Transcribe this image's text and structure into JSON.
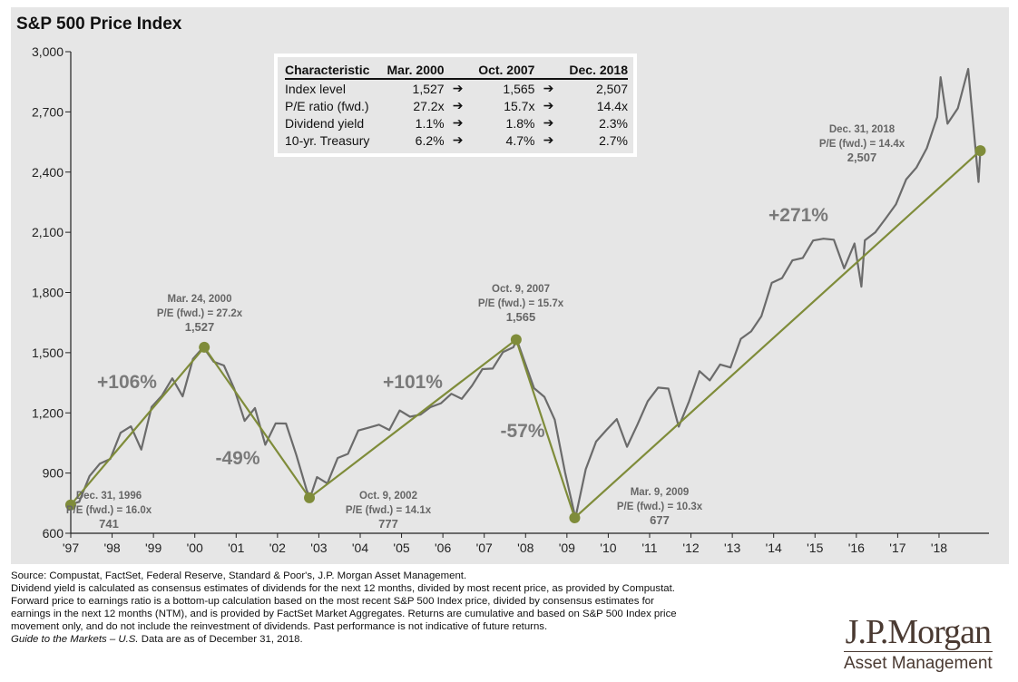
{
  "chart_data": {
    "type": "line",
    "title": "S&P 500 Price Index",
    "ylim": [
      600,
      3000
    ],
    "yticks": [
      600,
      900,
      1200,
      1500,
      1800,
      2100,
      2400,
      2700,
      3000
    ],
    "ytick_labels": [
      "600",
      "900",
      "1,200",
      "1,500",
      "1,800",
      "2,100",
      "2,400",
      "2,700",
      "3,000"
    ],
    "xticks": [
      1997,
      1998,
      1999,
      2000,
      2001,
      2002,
      2003,
      2004,
      2005,
      2006,
      2007,
      2008,
      2009,
      2010,
      2011,
      2012,
      2013,
      2014,
      2015,
      2016,
      2017,
      2018
    ],
    "xtick_labels": [
      "'97",
      "'98",
      "'99",
      "'00",
      "'01",
      "'02",
      "'03",
      "'04",
      "'05",
      "'06",
      "'07",
      "'08",
      "'09",
      "'10",
      "'11",
      "'12",
      "'13",
      "'14",
      "'15",
      "'16",
      "'17",
      "'18"
    ],
    "grid": false,
    "colors": {
      "price": "#6b6b6b",
      "trend": "#7f8c3a",
      "background": "#e6e6e6"
    },
    "price_series": [
      [
        "1996-12",
        741
      ],
      [
        "1997-03",
        757
      ],
      [
        "1997-06",
        885
      ],
      [
        "1997-09",
        947
      ],
      [
        "1997-12",
        970
      ],
      [
        "1998-03",
        1101
      ],
      [
        "1998-06",
        1133
      ],
      [
        "1998-09",
        1017
      ],
      [
        "1998-12",
        1229
      ],
      [
        "1999-03",
        1286
      ],
      [
        "1999-06",
        1372
      ],
      [
        "1999-09",
        1282
      ],
      [
        "1999-12",
        1469
      ],
      [
        "2000-03",
        1527
      ],
      [
        "2000-06",
        1455
      ],
      [
        "2000-09",
        1436
      ],
      [
        "2000-12",
        1320
      ],
      [
        "2001-03",
        1160
      ],
      [
        "2001-06",
        1224
      ],
      [
        "2001-09",
        1041
      ],
      [
        "2001-12",
        1148
      ],
      [
        "2002-03",
        1147
      ],
      [
        "2002-06",
        990
      ],
      [
        "2002-09",
        815
      ],
      [
        "2002-10",
        777
      ],
      [
        "2002-12",
        880
      ],
      [
        "2003-03",
        848
      ],
      [
        "2003-06",
        975
      ],
      [
        "2003-09",
        996
      ],
      [
        "2003-12",
        1112
      ],
      [
        "2004-03",
        1126
      ],
      [
        "2004-06",
        1141
      ],
      [
        "2004-09",
        1115
      ],
      [
        "2004-12",
        1212
      ],
      [
        "2005-03",
        1181
      ],
      [
        "2005-06",
        1191
      ],
      [
        "2005-09",
        1229
      ],
      [
        "2005-12",
        1248
      ],
      [
        "2006-03",
        1295
      ],
      [
        "2006-06",
        1270
      ],
      [
        "2006-09",
        1336
      ],
      [
        "2006-12",
        1418
      ],
      [
        "2007-03",
        1421
      ],
      [
        "2007-06",
        1503
      ],
      [
        "2007-09",
        1527
      ],
      [
        "2007-10",
        1565
      ],
      [
        "2007-12",
        1468
      ],
      [
        "2008-03",
        1323
      ],
      [
        "2008-06",
        1280
      ],
      [
        "2008-09",
        1166
      ],
      [
        "2008-12",
        903
      ],
      [
        "2009-03",
        677
      ],
      [
        "2009-06",
        919
      ],
      [
        "2009-09",
        1057
      ],
      [
        "2009-12",
        1115
      ],
      [
        "2010-03",
        1169
      ],
      [
        "2010-06",
        1031
      ],
      [
        "2010-09",
        1141
      ],
      [
        "2010-12",
        1258
      ],
      [
        "2011-03",
        1326
      ],
      [
        "2011-06",
        1321
      ],
      [
        "2011-09",
        1131
      ],
      [
        "2011-12",
        1258
      ],
      [
        "2012-03",
        1408
      ],
      [
        "2012-06",
        1362
      ],
      [
        "2012-09",
        1441
      ],
      [
        "2012-12",
        1426
      ],
      [
        "2013-03",
        1569
      ],
      [
        "2013-06",
        1606
      ],
      [
        "2013-09",
        1682
      ],
      [
        "2013-12",
        1848
      ],
      [
        "2014-03",
        1872
      ],
      [
        "2014-06",
        1960
      ],
      [
        "2014-09",
        1972
      ],
      [
        "2014-12",
        2059
      ],
      [
        "2015-03",
        2068
      ],
      [
        "2015-06",
        2063
      ],
      [
        "2015-09",
        1920
      ],
      [
        "2015-12",
        2044
      ],
      [
        "2016-02",
        1829
      ],
      [
        "2016-03",
        2060
      ],
      [
        "2016-06",
        2099
      ],
      [
        "2016-09",
        2168
      ],
      [
        "2016-12",
        2239
      ],
      [
        "2017-03",
        2363
      ],
      [
        "2017-06",
        2423
      ],
      [
        "2017-09",
        2519
      ],
      [
        "2017-12",
        2674
      ],
      [
        "2018-01",
        2873
      ],
      [
        "2018-03",
        2641
      ],
      [
        "2018-06",
        2718
      ],
      [
        "2018-09",
        2914
      ],
      [
        "2018-12",
        2351
      ],
      [
        "2018-12-31",
        2507
      ]
    ],
    "trend_points": [
      {
        "date": "1996-12-31",
        "value": 741,
        "label": [
          "Dec. 31, 1996",
          "P/E (fwd.) = 16.0x",
          "741"
        ]
      },
      {
        "date": "2000-03-24",
        "value": 1527,
        "label": [
          "Mar. 24, 2000",
          "P/E (fwd.) = 27.2x",
          "1,527"
        ]
      },
      {
        "date": "2002-10-09",
        "value": 777,
        "label": [
          "Oct. 9, 2002",
          "P/E (fwd.) = 14.1x",
          "777"
        ]
      },
      {
        "date": "2007-10-09",
        "value": 1565,
        "label": [
          "Oct. 9, 2007",
          "P/E (fwd.) = 15.7x",
          "1,565"
        ]
      },
      {
        "date": "2009-03-09",
        "value": 677,
        "label": [
          "Mar. 9, 2009",
          "P/E (fwd.) = 10.3x",
          "677"
        ]
      },
      {
        "date": "2018-12-31",
        "value": 2507,
        "label": [
          "Dec. 31, 2018",
          "P/E (fwd.) = 14.4x",
          "2,507"
        ]
      }
    ],
    "returns": [
      "+106%",
      "-49%",
      "+101%",
      "-57%",
      "+271%"
    ]
  },
  "table": {
    "headers": [
      "Characteristic",
      "Mar. 2000",
      "Oct. 2007",
      "Dec. 2018"
    ],
    "rows": [
      [
        "Index level",
        "1,527",
        "1,565",
        "2,507"
      ],
      [
        "P/E ratio (fwd.)",
        "27.2x",
        "15.7x",
        "14.4x"
      ],
      [
        "Dividend yield",
        "1.1%",
        "1.8%",
        "2.3%"
      ],
      [
        "10-yr. Treasury",
        "6.2%",
        "4.7%",
        "2.7%"
      ]
    ],
    "arrow": "➔"
  },
  "notes": {
    "lines": [
      "Source: Compustat, FactSet, Federal Reserve, Standard & Poor's, J.P. Morgan Asset Management.",
      "Dividend yield is calculated as consensus estimates of dividends for the next 12 months, divided by most recent price, as provided by Compustat.",
      "Forward price to earnings ratio is a bottom-up calculation based on the most recent S&P 500 Index price, divided by consensus estimates for",
      "earnings in the next 12 months (NTM), and is provided by FactSet Market Aggregates. Returns are cumulative and based on S&P 500 Index price",
      "movement only, and do not include the reinvestment of dividends. Past performance is not indicative of future returns."
    ],
    "guide_italic": "Guide to the Markets – U.S.",
    "guide_rest": " Data are as of December 31, 2018."
  },
  "logo": {
    "name": "J.P.Morgan",
    "sub": "Asset Management"
  }
}
